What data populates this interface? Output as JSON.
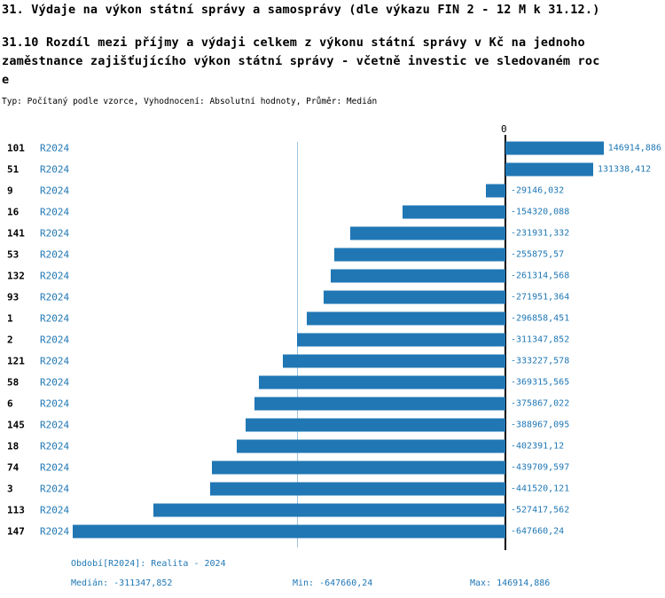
{
  "header": {
    "title": "31. Výdaje na výkon státní správy a samosprávy (dle výkazu FIN 2 - 12 M k 31.12.)",
    "subtitle_lines": [
      "31.10 Rozdíl mezi  příjmy a výdaji celkem z výkonu státní správy v Kč na jednoho",
      "zaměstnance zajišťujícího výkon státní správy - včetně investic ve sledovaném roc",
      "e"
    ],
    "meta": "Typ: Počítaný podle vzorce, Vyhodnocení: Absolutní hodnoty, Průměr: Medián"
  },
  "chart_data": {
    "type": "bar",
    "orientation": "horizontal",
    "series_label": "R2024",
    "zero_label": "0",
    "categories": [
      "101",
      "51",
      "9",
      "16",
      "141",
      "53",
      "132",
      "93",
      "1",
      "2",
      "121",
      "58",
      "6",
      "145",
      "18",
      "74",
      "3",
      "113",
      "147"
    ],
    "values": [
      146914.886,
      131338.412,
      -29146.032,
      -154320.088,
      -231931.332,
      -255875.57,
      -261314.568,
      -271951.364,
      -296858.451,
      -311347.852,
      -333227.578,
      -369315.565,
      -375867.022,
      -388967.095,
      -402391.12,
      -439709.597,
      -441520.121,
      -527417.562,
      -647660.24
    ],
    "value_labels": [
      "146914,886",
      "131338,412",
      "-29146,032",
      "-154320,088",
      "-231931,332",
      "-255875,57",
      "-261314,568",
      "-271951,364",
      "-296858,451",
      "-311347,852",
      "-333227,578",
      "-369315,565",
      "-375867,022",
      "-388967,095",
      "-402391,12",
      "-439709,597",
      "-441520,121",
      "-527417,562",
      "-647660,24"
    ],
    "xlim": [
      -647660.24,
      146914.886
    ],
    "median": -311347.852,
    "bar_color": "#2077b4",
    "grid": false,
    "legend_position": "none"
  },
  "footer": {
    "period": "Období[R2024]: Realita - 2024",
    "median": "Medián: -311347,852",
    "min": "Min: -647660,24",
    "max": "Max: 146914,886"
  }
}
